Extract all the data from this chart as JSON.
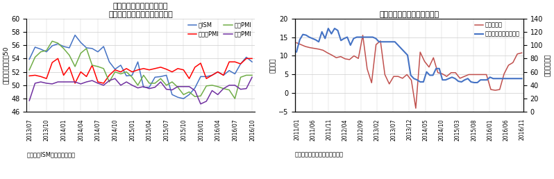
{
  "chart1": {
    "title": "主要地域の製造業景況指数",
    "subtitle": "～約２年ぶりに全地域で回復～",
    "ylabel": "好不調の分岐点＝50",
    "source": "（出所）ISM、マーキット社",
    "ylim": [
      46,
      60
    ],
    "yticks": [
      46,
      48,
      50,
      52,
      54,
      56,
      58,
      60
    ],
    "xtick_labels": [
      "2013/07",
      "2013/10",
      "2014/01",
      "2014/04",
      "2014/07",
      "2014/10",
      "2015/01",
      "2015/04",
      "2015/07",
      "2015/10",
      "2016/01",
      "2016/04",
      "2016/07",
      "2016/10"
    ],
    "us_ism": [
      53.9,
      55.7,
      55.4,
      55.0,
      55.9,
      56.2,
      55.8,
      55.6,
      57.5,
      56.4,
      55.6,
      55.5,
      55.0,
      55.8,
      53.5,
      52.4,
      53.0,
      51.4,
      51.5,
      53.5,
      49.7,
      49.7,
      51.2,
      51.3,
      51.5,
      48.6,
      48.2,
      48.0,
      48.6,
      49.6,
      51.3,
      51.3,
      51.5,
      52.0,
      51.5,
      52.2,
      51.7,
      53.2,
      54.2,
      53.5
    ],
    "euro_pmi": [
      51.4,
      51.5,
      51.3,
      51.0,
      53.4,
      54.0,
      51.5,
      52.7,
      50.3,
      52.0,
      51.3,
      53.0,
      50.5,
      50.3,
      51.5,
      52.3,
      52.0,
      52.5,
      52.0,
      52.3,
      52.5,
      52.3,
      52.5,
      52.7,
      52.4,
      52.0,
      52.5,
      52.3,
      51.0,
      52.7,
      53.3,
      51.0,
      51.5,
      52.0,
      51.5,
      53.5,
      53.5,
      53.2,
      54.0,
      54.0
    ],
    "japan_pmi": [
      52.3,
      54.2,
      55.0,
      55.2,
      56.6,
      56.3,
      55.5,
      54.5,
      52.8,
      54.8,
      55.5,
      53.0,
      52.8,
      52.5,
      50.5,
      52.0,
      51.7,
      52.0,
      51.2,
      50.0,
      51.5,
      50.3,
      50.3,
      51.0,
      50.0,
      50.5,
      49.7,
      48.6,
      49.0,
      48.3,
      48.4,
      49.9,
      50.0,
      49.8,
      49.5,
      49.3,
      48.0,
      51.2,
      51.5,
      51.5
    ],
    "china_pmi": [
      47.7,
      50.3,
      50.5,
      50.3,
      50.2,
      50.5,
      50.5,
      50.5,
      50.5,
      50.2,
      50.5,
      50.7,
      50.3,
      50.0,
      50.7,
      51.0,
      50.0,
      50.5,
      50.0,
      49.6,
      49.8,
      49.5,
      49.7,
      50.5,
      49.4,
      49.3,
      49.8,
      49.8,
      49.8,
      49.2,
      47.2,
      47.6,
      49.2,
      48.6,
      49.5,
      50.0,
      50.0,
      49.4,
      49.5,
      51.2
    ],
    "color_us": "#4472C4",
    "color_euro": "#FF0000",
    "color_japan": "#70AD47",
    "color_china": "#7030A0"
  },
  "chart2": {
    "title": "中国経済と原油の戻りが背景",
    "ylabel_left": "前年比％",
    "ylabel_right": "ドル／バレル",
    "source": "（出所）日経新聞等を基に作成",
    "ylim_left": [
      -5,
      20
    ],
    "ylim_right": [
      0,
      140
    ],
    "yticks_left": [
      -5,
      0,
      5,
      10,
      15,
      20
    ],
    "yticks_right": [
      0,
      20,
      40,
      60,
      80,
      100,
      120,
      140
    ],
    "xtick_labels": [
      "2011/01",
      "2011/06",
      "2011/11",
      "2012/04",
      "2012/09",
      "2013/02",
      "2013/07",
      "2013/12",
      "2014/05",
      "2014/10",
      "2015/03",
      "2015/08",
      "2016/01",
      "2016/06",
      "2016/11"
    ],
    "li_index": [
      13.5,
      13.0,
      12.5,
      12.2,
      12.0,
      11.8,
      11.5,
      10.8,
      10.2,
      9.5,
      9.8,
      9.2,
      9.0,
      10.0,
      9.3,
      15.5,
      6.5,
      2.8,
      13.0,
      14.0,
      5.0,
      2.5,
      4.5,
      4.5,
      4.0,
      5.0,
      3.5,
      -4.0,
      11.0,
      8.5,
      7.0,
      9.5,
      5.5,
      5.2,
      4.5,
      5.5,
      5.5,
      4.0,
      4.5,
      5.0,
      5.0,
      5.0,
      5.0,
      5.0,
      1.0,
      0.8,
      1.0,
      5.2,
      7.5,
      8.2,
      10.5,
      10.8
    ],
    "dubai_oil": [
      90,
      108,
      116,
      115,
      112,
      110,
      108,
      105,
      120,
      110,
      125,
      117,
      125,
      122,
      107,
      110,
      112,
      100,
      110,
      112,
      112,
      112,
      112,
      112,
      112,
      110,
      105,
      105,
      105,
      105,
      105,
      105,
      100,
      95,
      90,
      85,
      55,
      50,
      48,
      45,
      45,
      60,
      55,
      55,
      65,
      65,
      48,
      48,
      50,
      52,
      50,
      46,
      45,
      48,
      50,
      45,
      44,
      44,
      48,
      48,
      48,
      52,
      50,
      50,
      50,
      50,
      50,
      50,
      50,
      50,
      50,
      50
    ],
    "color_li": "#C0504D",
    "color_dubai": "#4472C4"
  }
}
